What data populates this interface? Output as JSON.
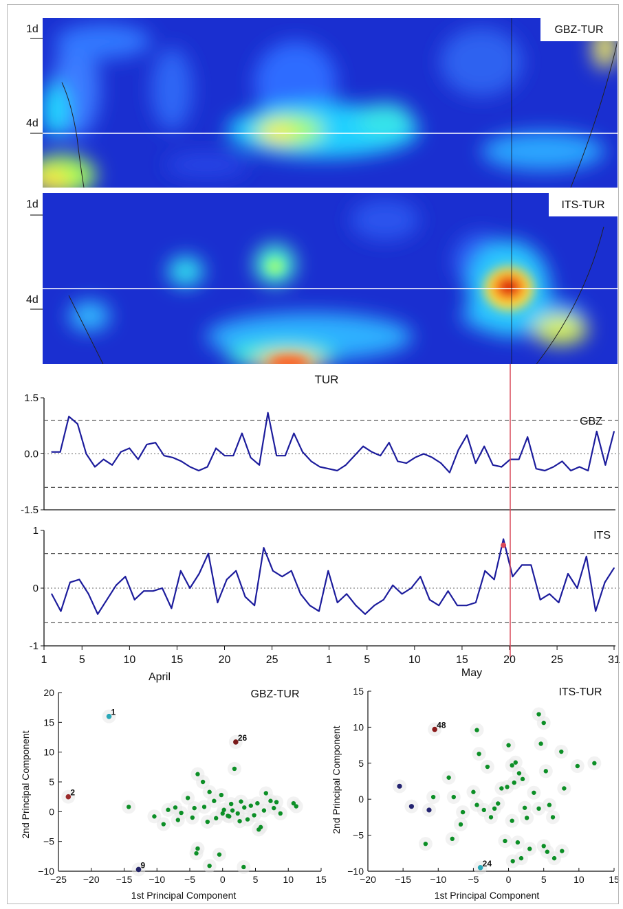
{
  "colors": {
    "background": "#ffffff",
    "line": "#1c1c9c",
    "marker": "#0c8f26",
    "highlight": "#d94a5a",
    "reference_dash": "#555555",
    "zero_dot": "#888888"
  },
  "chart_data": [
    {
      "type": "heatmap",
      "label": "GBZ-TUR",
      "y_tick_labels": [
        "1d",
        "4d"
      ],
      "notable_features": [
        {
          "day": 25,
          "period": "4d",
          "level": "high"
        },
        {
          "day": 2,
          "period": "long",
          "level": "high"
        }
      ]
    },
    {
      "type": "heatmap",
      "label": "ITS-TUR",
      "y_tick_labels": [
        "1d",
        "4d"
      ],
      "notable_features": [
        {
          "day": 49,
          "period": "4d",
          "level": "highest"
        },
        {
          "day": 25,
          "period": "long",
          "level": "high"
        }
      ]
    },
    {
      "type": "line",
      "title": "TUR",
      "series": [
        {
          "name": "GBZ",
          "values": [
            0.05,
            0.05,
            1.0,
            0.8,
            0.0,
            -0.35,
            -0.15,
            -0.3,
            0.05,
            0.15,
            -0.15,
            0.25,
            0.3,
            -0.05,
            -0.1,
            -0.2,
            -0.35,
            -0.45,
            -0.35,
            0.15,
            -0.05,
            -0.05,
            0.55,
            -0.1,
            -0.3,
            1.1,
            -0.05,
            -0.05,
            0.55,
            0.05,
            -0.2,
            -0.35,
            -0.4,
            -0.45,
            -0.3,
            -0.05,
            0.2,
            0.05,
            -0.05,
            0.3,
            -0.2,
            -0.25,
            -0.1,
            0.0,
            -0.1,
            -0.25,
            -0.5,
            0.1,
            0.5,
            -0.25,
            0.2,
            -0.3,
            -0.35,
            -0.15,
            -0.15,
            0.45,
            -0.4,
            -0.45,
            -0.35,
            -0.2,
            -0.45,
            -0.35,
            -0.45,
            0.6,
            -0.3,
            0.6
          ]
        }
      ],
      "ylim": [
        -1.5,
        1.5
      ],
      "y_ticks": [
        1.5,
        0.0,
        -1.5
      ],
      "reference_lines": [
        0.9,
        -0.9
      ]
    },
    {
      "type": "line",
      "series": [
        {
          "name": "ITS",
          "values": [
            -0.1,
            -0.4,
            0.1,
            0.15,
            -0.1,
            -0.45,
            -0.2,
            0.05,
            0.2,
            -0.2,
            -0.05,
            -0.05,
            0.0,
            -0.35,
            0.3,
            0.0,
            0.25,
            0.6,
            -0.25,
            0.15,
            0.3,
            -0.15,
            -0.3,
            0.7,
            0.3,
            0.2,
            0.3,
            -0.1,
            -0.3,
            -0.4,
            0.3,
            -0.25,
            -0.1,
            -0.3,
            -0.45,
            -0.3,
            -0.2,
            0.05,
            -0.1,
            0.0,
            0.2,
            -0.2,
            -0.3,
            -0.05,
            -0.3,
            -0.3,
            -0.25,
            0.3,
            0.15,
            0.85,
            0.2,
            0.4,
            0.4,
            -0.2,
            -0.1,
            -0.25,
            0.25,
            0.0,
            0.55,
            -0.4,
            0.1,
            0.35
          ]
        }
      ],
      "highlighted_point": {
        "index": 49,
        "value": 0.85
      },
      "ylim": [
        -1,
        1
      ],
      "y_ticks": [
        1,
        0,
        -1
      ],
      "reference_lines": [
        0.6,
        -0.6
      ],
      "x_tick_labels": [
        "1",
        "5",
        "10",
        "15",
        "20",
        "25",
        "1",
        "5",
        "10",
        "15",
        "20",
        "25",
        "31"
      ],
      "month_labels": [
        "April",
        "May"
      ],
      "marker_day": 49
    },
    {
      "type": "scatter",
      "title": "GBZ-TUR",
      "xlabel": "1st Principal Component",
      "ylabel": "2nd Principal Component",
      "xlim": [
        -25,
        15
      ],
      "ylim": [
        -10,
        20
      ],
      "x_ticks": [
        -25,
        -20,
        -15,
        -10,
        -5,
        0,
        5,
        10,
        15
      ],
      "y_ticks": [
        -10,
        -5,
        0,
        5,
        10,
        15,
        20
      ],
      "labeled_points": [
        {
          "label": "1",
          "x": -17.3,
          "y": 16.0,
          "color": "#2aa8b8"
        },
        {
          "label": "26",
          "x": 2.0,
          "y": 11.7,
          "color": "#7a1a1a"
        },
        {
          "label": "2",
          "x": -23.5,
          "y": 2.5,
          "color": "#9a2a2a"
        },
        {
          "label": "9",
          "x": -12.8,
          "y": -9.7,
          "color": "#222266"
        }
      ],
      "points": [
        [
          -14.3,
          0.8
        ],
        [
          -10.4,
          -0.8
        ],
        [
          -9.0,
          -2.1
        ],
        [
          -8.3,
          0.3
        ],
        [
          -7.2,
          0.7
        ],
        [
          -6.3,
          -0.2
        ],
        [
          -5.3,
          2.3
        ],
        [
          -4.6,
          -1.0
        ],
        [
          -3.8,
          6.3
        ],
        [
          -3.0,
          5.0
        ],
        [
          -2.8,
          0.8
        ],
        [
          -2.3,
          -1.7
        ],
        [
          -2.0,
          3.3
        ],
        [
          -1.3,
          1.8
        ],
        [
          -1.0,
          -1.1
        ],
        [
          -0.2,
          2.8
        ],
        [
          0.2,
          0.3
        ],
        [
          0.8,
          -0.7
        ],
        [
          1.3,
          1.3
        ],
        [
          1.8,
          7.2
        ],
        [
          2.3,
          -0.3
        ],
        [
          2.8,
          1.7
        ],
        [
          3.3,
          0.7
        ],
        [
          3.8,
          -1.3
        ],
        [
          4.3,
          1.0
        ],
        [
          4.8,
          -0.6
        ],
        [
          5.3,
          1.4
        ],
        [
          5.8,
          -2.6
        ],
        [
          6.3,
          0.2
        ],
        [
          6.6,
          3.1
        ],
        [
          7.3,
          1.8
        ],
        [
          7.8,
          0.6
        ],
        [
          8.2,
          1.6
        ],
        [
          8.8,
          -0.3
        ],
        [
          10.8,
          1.4
        ],
        [
          11.2,
          0.9
        ],
        [
          -3.8,
          -6.2
        ],
        [
          -4.0,
          -7.0
        ],
        [
          -0.5,
          -7.2
        ],
        [
          -2.0,
          -9.1
        ],
        [
          3.2,
          -9.3
        ],
        [
          0.0,
          -0.3
        ],
        [
          -4.3,
          0.6
        ],
        [
          1.0,
          -0.8
        ],
        [
          2.6,
          -1.6
        ],
        [
          5.5,
          -3.0
        ],
        [
          -6.8,
          -1.4
        ],
        [
          1.5,
          0.2
        ]
      ]
    },
    {
      "type": "scatter",
      "title": "ITS-TUR",
      "xlabel": "1st Principal Component",
      "ylabel": "2nd Principal Component",
      "xlim": [
        -20,
        15
      ],
      "ylim": [
        -10,
        15
      ],
      "x_ticks": [
        -20,
        -15,
        -10,
        -5,
        0,
        5,
        10,
        15
      ],
      "y_ticks": [
        -10,
        -5,
        0,
        5,
        10,
        15
      ],
      "labeled_points": [
        {
          "label": "48",
          "x": -10.5,
          "y": 9.7,
          "color": "#8a1a1a"
        },
        {
          "label": "24",
          "x": -4.0,
          "y": -9.5,
          "color": "#2aa8b8"
        }
      ],
      "special_points": [
        {
          "x": -15.5,
          "y": 1.8,
          "color": "#232370"
        },
        {
          "x": -13.8,
          "y": -1.0,
          "color": "#232370"
        },
        {
          "x": -11.3,
          "y": -1.5,
          "color": "#232370"
        }
      ],
      "points": [
        [
          -4.5,
          9.6
        ],
        [
          -4.2,
          6.3
        ],
        [
          -3.0,
          4.5
        ],
        [
          -8.5,
          3.0
        ],
        [
          -7.8,
          0.3
        ],
        [
          -6.5,
          -1.8
        ],
        [
          -5.0,
          1.0
        ],
        [
          -4.5,
          -0.8
        ],
        [
          -3.5,
          -1.5
        ],
        [
          -2.5,
          -2.5
        ],
        [
          -2.0,
          -1.3
        ],
        [
          -1.0,
          1.5
        ],
        [
          -0.5,
          -5.8
        ],
        [
          0.0,
          7.5
        ],
        [
          0.5,
          4.7
        ],
        [
          1.0,
          5.1
        ],
        [
          1.5,
          3.6
        ],
        [
          2.0,
          2.8
        ],
        [
          2.3,
          -1.2
        ],
        [
          2.6,
          -2.6
        ],
        [
          0.5,
          -3.0
        ],
        [
          1.3,
          -6.0
        ],
        [
          1.8,
          -8.2
        ],
        [
          3.0,
          -6.9
        ],
        [
          4.3,
          11.8
        ],
        [
          4.6,
          7.7
        ],
        [
          5.0,
          10.6
        ],
        [
          5.3,
          3.9
        ],
        [
          4.3,
          -1.3
        ],
        [
          5.8,
          -0.8
        ],
        [
          6.3,
          -2.5
        ],
        [
          5.0,
          -6.5
        ],
        [
          5.5,
          -7.3
        ],
        [
          6.5,
          -8.2
        ],
        [
          7.5,
          6.6
        ],
        [
          7.9,
          1.5
        ],
        [
          7.6,
          -7.2
        ],
        [
          9.8,
          4.6
        ],
        [
          12.2,
          5.0
        ],
        [
          -11.8,
          -6.2
        ],
        [
          -8.0,
          -5.5
        ],
        [
          -6.8,
          -3.5
        ],
        [
          -0.2,
          1.7
        ],
        [
          0.8,
          2.3
        ],
        [
          3.6,
          0.9
        ],
        [
          -1.5,
          -0.6
        ],
        [
          0.6,
          -8.6
        ],
        [
          -10.7,
          0.3
        ]
      ]
    }
  ]
}
